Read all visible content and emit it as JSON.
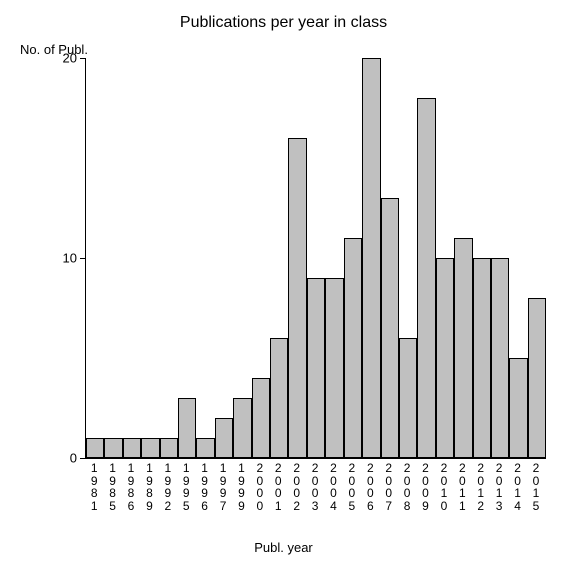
{
  "chart": {
    "type": "bar",
    "title": "Publications per year in class",
    "title_fontsize": 16,
    "y_axis_label": "No. of Publ.",
    "x_axis_label": "Publ. year",
    "label_fontsize": 13,
    "background_color": "#ffffff",
    "bar_fill_color": "#c0c0c0",
    "bar_border_color": "#000000",
    "axis_color": "#000000",
    "text_color": "#000000",
    "ylim": [
      0,
      20
    ],
    "yticks": [
      0,
      10,
      20
    ],
    "categories": [
      "1981",
      "1985",
      "1986",
      "1989",
      "1992",
      "1995",
      "1996",
      "1997",
      "1999",
      "2000",
      "2001",
      "2002",
      "2003",
      "2004",
      "2005",
      "2006",
      "2007",
      "2008",
      "2009",
      "2010",
      "2011",
      "2012",
      "2013",
      "2014",
      "2015"
    ],
    "values": [
      1,
      1,
      1,
      1,
      1,
      3,
      1,
      2,
      3,
      4,
      6,
      16,
      9,
      9,
      11,
      20,
      13,
      6,
      18,
      10,
      11,
      10,
      10,
      5,
      8
    ],
    "bar_width": 1.0,
    "tick_fontsize": 12,
    "vertical_x_labels": true
  }
}
